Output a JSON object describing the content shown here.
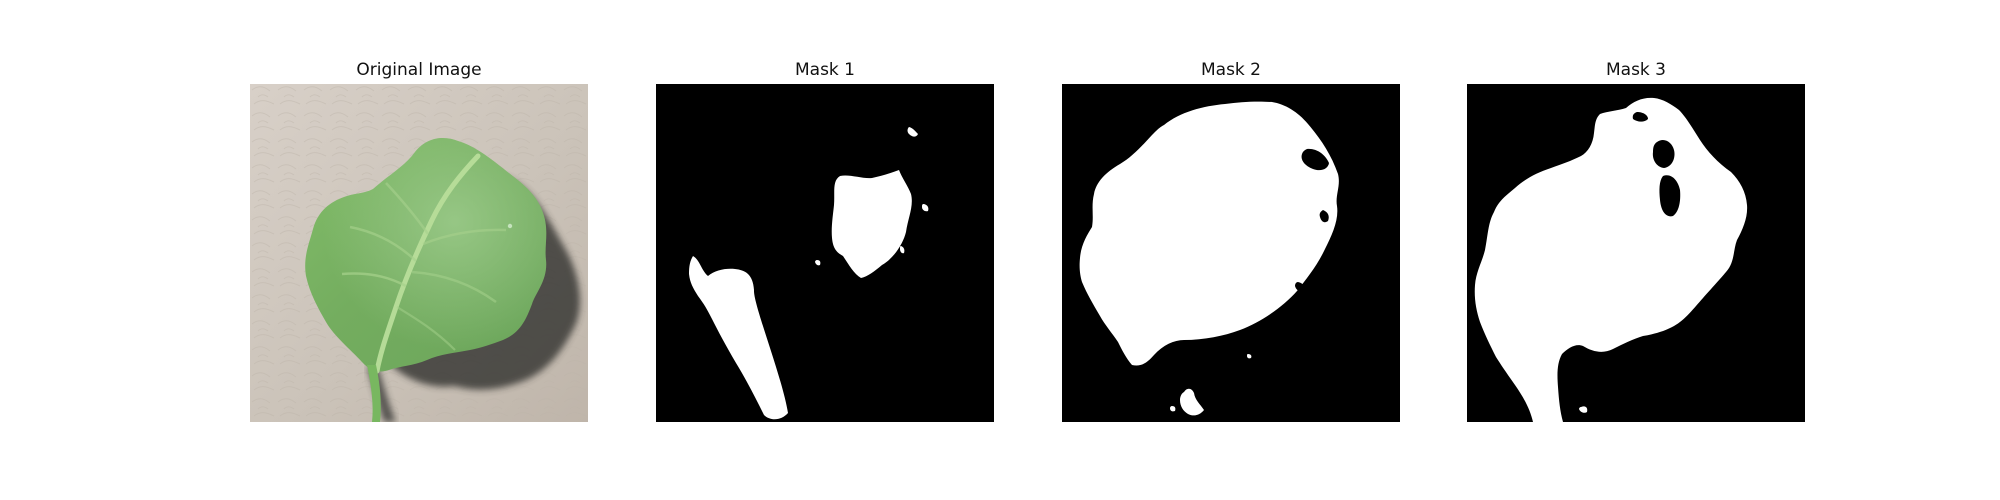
{
  "figure": {
    "panels": [
      {
        "title": "Original Image"
      },
      {
        "title": "Mask 1"
      },
      {
        "title": "Mask 2"
      },
      {
        "title": "Mask 3"
      }
    ]
  },
  "colors": {
    "background": "#ffffff",
    "title_text": "#111111",
    "mask_background": "#000000",
    "mask_foreground": "#ffffff",
    "leaf_green": "#79b563",
    "paper_beige": "#cbc2b7"
  }
}
